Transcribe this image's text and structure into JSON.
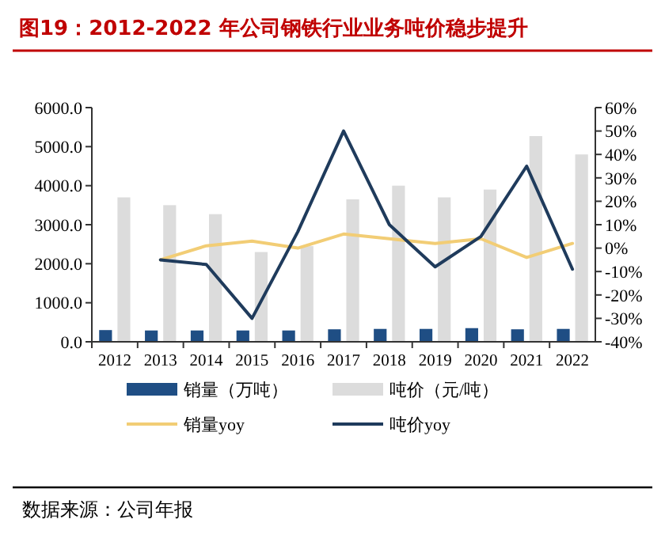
{
  "chart_data": {
    "type": "bar",
    "title": "图19：2012-2022 年公司钢铁行业业务吨价稳步提升",
    "categories": [
      "2012",
      "2013",
      "2014",
      "2015",
      "2016",
      "2017",
      "2018",
      "2019",
      "2020",
      "2021",
      "2022"
    ],
    "series": [
      {
        "name": "销量（万吨）",
        "color": "#1f4e84",
        "values": [
          300,
          290,
          290,
          290,
          290,
          320,
          330,
          330,
          350,
          320,
          330
        ]
      },
      {
        "name": "吨价（元/吨）",
        "color": "#dcdcdc",
        "values": [
          3700,
          3500,
          3270,
          2300,
          2450,
          3650,
          4000,
          3700,
          3900,
          5270,
          4800
        ]
      },
      {
        "name": "销量yoy",
        "type": "line",
        "axis": "y2",
        "color": "#f2cd75",
        "values": [
          null,
          -5,
          1,
          3,
          0,
          6,
          4,
          2,
          4,
          -4,
          2
        ]
      },
      {
        "name": "吨价yoy",
        "type": "line",
        "axis": "y2",
        "color": "#1f3b5c",
        "values": [
          null,
          -5,
          -7,
          -30,
          7,
          50,
          10,
          -8,
          5,
          35,
          -9
        ]
      }
    ],
    "ylim": [
      0,
      6000
    ],
    "yticks": [
      {
        "value": 0,
        "label": "0.0"
      },
      {
        "value": 1000,
        "label": "1000.0"
      },
      {
        "value": 2000,
        "label": "2000.0"
      },
      {
        "value": 3000,
        "label": "3000.0"
      },
      {
        "value": 4000,
        "label": "4000.0"
      },
      {
        "value": 5000,
        "label": "5000.0"
      },
      {
        "value": 6000,
        "label": "6000.0"
      }
    ],
    "y2lim": [
      -40,
      60
    ],
    "y2ticks": [
      {
        "value": -40,
        "label": "-40%"
      },
      {
        "value": -30,
        "label": "-30%"
      },
      {
        "value": -20,
        "label": "-20%"
      },
      {
        "value": -10,
        "label": "-10%"
      },
      {
        "value": 0,
        "label": "0%"
      },
      {
        "value": 10,
        "label": "10%"
      },
      {
        "value": 20,
        "label": "20%"
      },
      {
        "value": 30,
        "label": "30%"
      },
      {
        "value": 40,
        "label": "40%"
      },
      {
        "value": 50,
        "label": "50%"
      },
      {
        "value": 60,
        "label": "60%"
      }
    ],
    "legend": "bottom",
    "grid": false,
    "annotations": [
      "数据来源：公司年报"
    ]
  }
}
